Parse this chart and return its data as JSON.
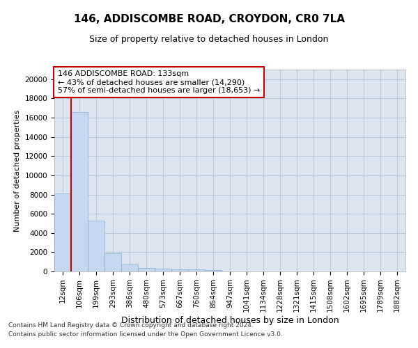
{
  "title_line1": "146, ADDISCOMBE ROAD, CROYDON, CR0 7LA",
  "title_line2": "Size of property relative to detached houses in London",
  "xlabel": "Distribution of detached houses by size in London",
  "ylabel": "Number of detached properties",
  "categories": [
    "12sqm",
    "106sqm",
    "199sqm",
    "293sqm",
    "386sqm",
    "480sqm",
    "573sqm",
    "667sqm",
    "760sqm",
    "854sqm",
    "947sqm",
    "1041sqm",
    "1134sqm",
    "1228sqm",
    "1321sqm",
    "1415sqm",
    "1508sqm",
    "1602sqm",
    "1695sqm",
    "1789sqm",
    "1882sqm"
  ],
  "bar_heights": [
    8100,
    16600,
    5300,
    1850,
    700,
    380,
    290,
    230,
    190,
    160,
    0,
    0,
    0,
    0,
    0,
    0,
    0,
    0,
    0,
    0,
    0
  ],
  "bar_color": "#c5d8ef",
  "bar_edge_color": "#7aaad0",
  "grid_color": "#b8c8dc",
  "background_color": "#dde6f0",
  "red_line_color": "#cc0000",
  "red_line_x": 0.5,
  "annotation_text": "146 ADDISCOMBE ROAD: 133sqm\n← 43% of detached houses are smaller (14,290)\n57% of semi-detached houses are larger (18,653) →",
  "annotation_box_color": "#ffffff",
  "annotation_box_edge": "#cc0000",
  "ylim": [
    0,
    21000
  ],
  "yticks": [
    0,
    2000,
    4000,
    6000,
    8000,
    10000,
    12000,
    14000,
    16000,
    18000,
    20000
  ],
  "footnote1": "Contains HM Land Registry data © Crown copyright and database right 2024.",
  "footnote2": "Contains public sector information licensed under the Open Government Licence v3.0.",
  "title_fontsize": 11,
  "subtitle_fontsize": 9,
  "xlabel_fontsize": 9,
  "ylabel_fontsize": 8,
  "tick_fontsize": 7.5,
  "annotation_fontsize": 8,
  "footnote_fontsize": 6.5
}
